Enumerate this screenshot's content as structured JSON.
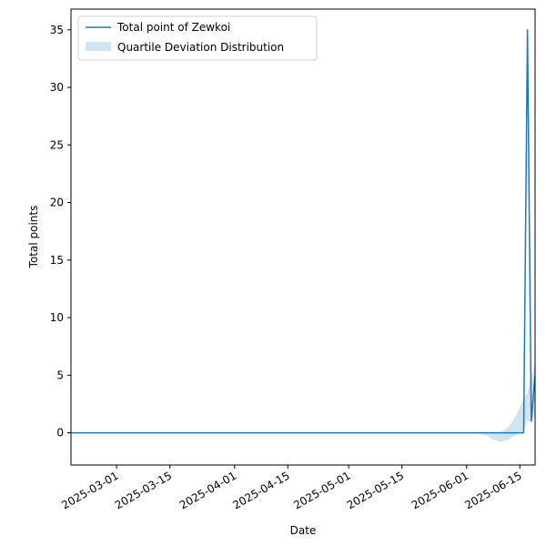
{
  "chart_data": {
    "type": "line",
    "title": "",
    "xlabel": "Date",
    "ylabel": "Total points",
    "xlim": [
      "2025-02-17",
      "2025-06-19"
    ],
    "ylim": [
      -2.8,
      36.8
    ],
    "x_ticks": [
      "2025-03-01",
      "2025-03-15",
      "2025-04-01",
      "2025-04-15",
      "2025-05-01",
      "2025-05-15",
      "2025-06-01",
      "2025-06-15"
    ],
    "y_ticks": [
      0,
      5,
      10,
      15,
      20,
      25,
      30,
      35
    ],
    "legend": {
      "position": "top-left",
      "entries": [
        "Total point of Zewkoi",
        "Quartile Deviation Distribution"
      ]
    },
    "grid": false,
    "series": [
      {
        "name": "Total point of Zewkoi",
        "kind": "line",
        "color": "#1f77b4",
        "points": [
          {
            "x": "2025-02-17",
            "y": 0
          },
          {
            "x": "2025-06-16",
            "y": 0
          },
          {
            "x": "2025-06-17",
            "y": 35
          },
          {
            "x": "2025-06-18",
            "y": 1
          },
          {
            "x": "2025-06-19",
            "y": 5
          }
        ]
      },
      {
        "name": "Quartile Deviation Distribution",
        "kind": "band",
        "color": "#1f77b4",
        "opacity": 0.2,
        "points": [
          {
            "x": "2025-06-04",
            "low": 0,
            "high": 0
          },
          {
            "x": "2025-06-06",
            "low": -0.2,
            "high": 0
          },
          {
            "x": "2025-06-08",
            "low": -0.6,
            "high": 0
          },
          {
            "x": "2025-06-10",
            "low": -0.8,
            "high": 0
          },
          {
            "x": "2025-06-12",
            "low": -0.6,
            "high": 0.5
          },
          {
            "x": "2025-06-14",
            "low": -0.2,
            "high": 1.5
          },
          {
            "x": "2025-06-16",
            "low": 0.2,
            "high": 3
          },
          {
            "x": "2025-06-17",
            "low": 1,
            "high": 3.5
          },
          {
            "x": "2025-06-18",
            "low": 1,
            "high": 5
          },
          {
            "x": "2025-06-19",
            "low": 1.5,
            "high": 6
          }
        ]
      }
    ]
  }
}
